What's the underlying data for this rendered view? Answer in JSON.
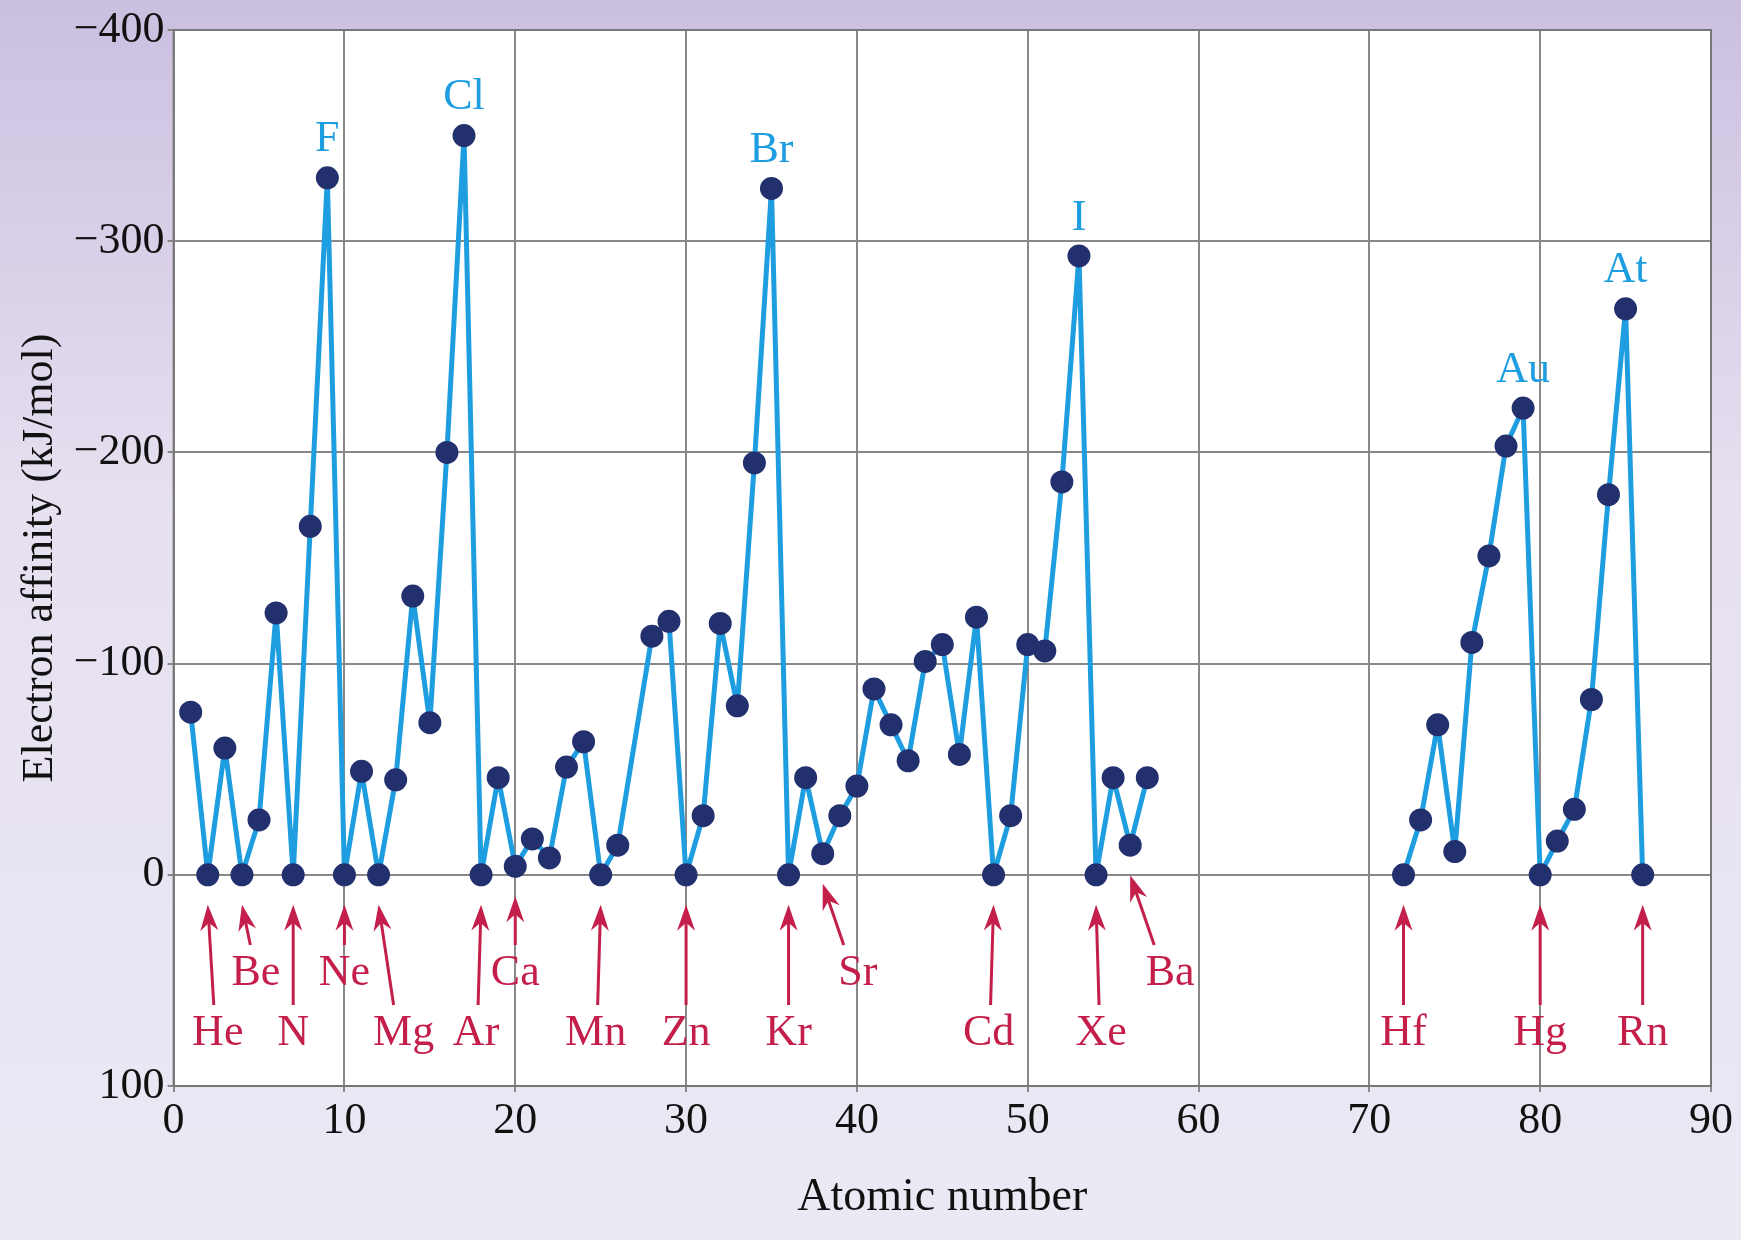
{
  "chart_data": {
    "type": "line",
    "xlabel": "Atomic number",
    "ylabel": "Electron affinity (kJ/mol)",
    "x": [
      1,
      2,
      3,
      4,
      5,
      6,
      7,
      8,
      9,
      10,
      11,
      12,
      13,
      14,
      15,
      16,
      17,
      18,
      19,
      20,
      21,
      22,
      23,
      24,
      25,
      26,
      28,
      29,
      30,
      31,
      32,
      33,
      34,
      35,
      36,
      37,
      38,
      39,
      40,
      41,
      42,
      43,
      44,
      45,
      46,
      47,
      48,
      49,
      50,
      51,
      52,
      53,
      54,
      55,
      56,
      57,
      58,
      72,
      73,
      74,
      75,
      76,
      77,
      78,
      79,
      80,
      81,
      82,
      83,
      84,
      85,
      86
    ],
    "series": [
      {
        "color": "#1e9ee0",
        "values": [
          -77,
          0,
          -60,
          0,
          -26,
          -124,
          0,
          -165,
          -330,
          0,
          -49,
          0,
          -45,
          -132,
          -72,
          -200,
          -350,
          0,
          -46,
          -4,
          -17,
          -8,
          -51,
          -63,
          0,
          -14,
          -113,
          -120,
          0,
          -28,
          -119,
          -80,
          -195,
          -325,
          0,
          -46,
          -10,
          -28,
          -42,
          -88,
          -71,
          -54,
          -101,
          -109,
          -57,
          -122,
          0,
          -28,
          -109,
          -106,
          -186,
          -293,
          0,
          -46,
          -14,
          -46,
          null,
          0,
          -26,
          -71,
          -11,
          -110,
          -151,
          -203,
          -221,
          0,
          -16,
          -31,
          -83,
          -180,
          -268,
          0
        ]
      }
    ],
    "xlim": [
      0,
      90
    ],
    "xticks": [
      0,
      10,
      20,
      30,
      40,
      50,
      60,
      70,
      80,
      90
    ],
    "ylim": [
      100,
      -400
    ],
    "yticks": [
      {
        "value": 100,
        "label": "100"
      },
      {
        "value": 0,
        "label": "0"
      },
      {
        "value": -100,
        "label": "−100"
      },
      {
        "value": -200,
        "label": "−200"
      },
      {
        "value": -300,
        "label": "−300"
      },
      {
        "value": -400,
        "label": "−400"
      }
    ],
    "grid": true,
    "legend": false,
    "marker": "circle",
    "line_style": "solid",
    "annotations": [
      {
        "text": "F",
        "x": 9,
        "y": -330
      },
      {
        "text": "Cl",
        "x": 17,
        "y": -350
      },
      {
        "text": "Br",
        "x": 35,
        "y": -325
      },
      {
        "text": "I",
        "x": 53,
        "y": -293
      },
      {
        "text": "Au",
        "x": 79,
        "y": -221
      },
      {
        "text": "At",
        "x": 85,
        "y": -268
      },
      {
        "text": "He",
        "x": 2,
        "y": 0
      },
      {
        "text": "Be",
        "x": 4,
        "y": 0
      },
      {
        "text": "N",
        "x": 7,
        "y": 0
      },
      {
        "text": "Ne",
        "x": 10,
        "y": 0
      },
      {
        "text": "Mg",
        "x": 12,
        "y": 0
      },
      {
        "text": "Ar",
        "x": 18,
        "y": 0
      },
      {
        "text": "Ca",
        "x": 20,
        "y": -4
      },
      {
        "text": "Mn",
        "x": 25,
        "y": 0
      },
      {
        "text": "Zn",
        "x": 30,
        "y": 0
      },
      {
        "text": "Kr",
        "x": 36,
        "y": 0
      },
      {
        "text": "Sr",
        "x": 38,
        "y": -10
      },
      {
        "text": "Cd",
        "x": 48,
        "y": 0
      },
      {
        "text": "Xe",
        "x": 54,
        "y": 0
      },
      {
        "text": "Ba",
        "x": 56,
        "y": -14
      },
      {
        "text": "Hf",
        "x": 72,
        "y": 0
      },
      {
        "text": "Hg",
        "x": 80,
        "y": 0
      },
      {
        "text": "Rn",
        "x": 86,
        "y": 0
      }
    ]
  }
}
